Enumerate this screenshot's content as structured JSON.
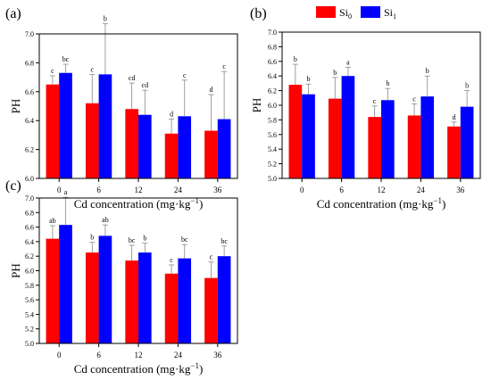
{
  "legend": {
    "items": [
      {
        "base": "Si",
        "sub": "0",
        "color": "#ff0000"
      },
      {
        "base": "Si",
        "sub": "1",
        "color": "#0000ff"
      }
    ]
  },
  "chart_data": [
    {
      "panel_label": "(a)",
      "type": "bar",
      "categories": [
        "0",
        "6",
        "12",
        "24",
        "36"
      ],
      "xlabel_main": "Cd concentration (mg·kg",
      "xlabel_sup": "−1",
      "xlabel_end": ")",
      "ylabel": "PH",
      "ylim": [
        6.0,
        7.0
      ],
      "yticks": [
        "6.0",
        "6.2",
        "6.4",
        "6.6",
        "6.8",
        "7.0"
      ],
      "yticks_values": [
        6.0,
        6.2,
        6.4,
        6.6,
        6.8,
        7.0
      ],
      "series": [
        {
          "values": [
            6.65,
            6.52,
            6.48,
            6.31,
            6.33
          ],
          "errors": [
            0.06,
            0.2,
            0.18,
            0.1,
            0.25
          ],
          "letters": [
            "c",
            "c",
            "cd",
            "d",
            "d"
          ]
        },
        {
          "values": [
            6.73,
            6.72,
            6.44,
            6.43,
            6.41
          ],
          "errors": [
            0.06,
            0.35,
            0.17,
            0.25,
            0.33
          ],
          "letters": [
            "bc",
            "b",
            "cd",
            "c",
            "c"
          ]
        }
      ]
    },
    {
      "panel_label": "(b)",
      "type": "bar",
      "categories": [
        "0",
        "6",
        "12",
        "24",
        "36"
      ],
      "xlabel_main": "Cd concentration (mg·kg",
      "xlabel_sup": "−1",
      "xlabel_end": ")",
      "ylabel": "PH",
      "ylim": [
        5.0,
        7.0
      ],
      "yticks": [
        "5.0",
        "5.2",
        "5.4",
        "5.6",
        "5.8",
        "6.0",
        "6.2",
        "6.4",
        "6.6",
        "6.8",
        "7.0"
      ],
      "yticks_values": [
        5.0,
        5.2,
        5.4,
        5.6,
        5.8,
        6.0,
        6.2,
        6.4,
        6.6,
        6.8,
        7.0
      ],
      "series": [
        {
          "values": [
            6.28,
            6.09,
            5.84,
            5.86,
            5.71
          ],
          "errors": [
            0.28,
            0.29,
            0.15,
            0.16,
            0.06
          ],
          "letters": [
            "b",
            "b",
            "c",
            "c",
            "d"
          ]
        },
        {
          "values": [
            6.15,
            6.4,
            6.07,
            6.12,
            5.98
          ],
          "errors": [
            0.14,
            0.12,
            0.16,
            0.28,
            0.22
          ],
          "letters": [
            "b",
            "a",
            "b",
            "b",
            "b"
          ]
        }
      ]
    },
    {
      "panel_label": "(c)",
      "type": "bar",
      "categories": [
        "0",
        "6",
        "12",
        "24",
        "36"
      ],
      "xlabel_main": "Cd concentration (mg·kg",
      "xlabel_sup": "−1",
      "xlabel_end": ")",
      "ylabel": "PH",
      "ylim": [
        5.0,
        7.0
      ],
      "yticks": [
        "5.0",
        "5.2",
        "5.4",
        "5.6",
        "5.8",
        "6.0",
        "6.2",
        "6.4",
        "6.6",
        "6.8",
        "7.0"
      ],
      "yticks_values": [
        5.0,
        5.2,
        5.4,
        5.6,
        5.8,
        6.0,
        6.2,
        6.4,
        6.6,
        6.8,
        7.0
      ],
      "series": [
        {
          "values": [
            6.44,
            6.25,
            6.14,
            5.96,
            5.9
          ],
          "errors": [
            0.18,
            0.14,
            0.21,
            0.12,
            0.22
          ],
          "letters": [
            "ab",
            "b",
            "bc",
            "c",
            "c"
          ]
        },
        {
          "values": [
            6.63,
            6.48,
            6.25,
            6.17,
            6.2
          ],
          "errors": [
            0.38,
            0.15,
            0.13,
            0.19,
            0.14
          ],
          "letters": [
            "a",
            "ab",
            "b",
            "bc",
            "bc"
          ]
        }
      ]
    }
  ]
}
